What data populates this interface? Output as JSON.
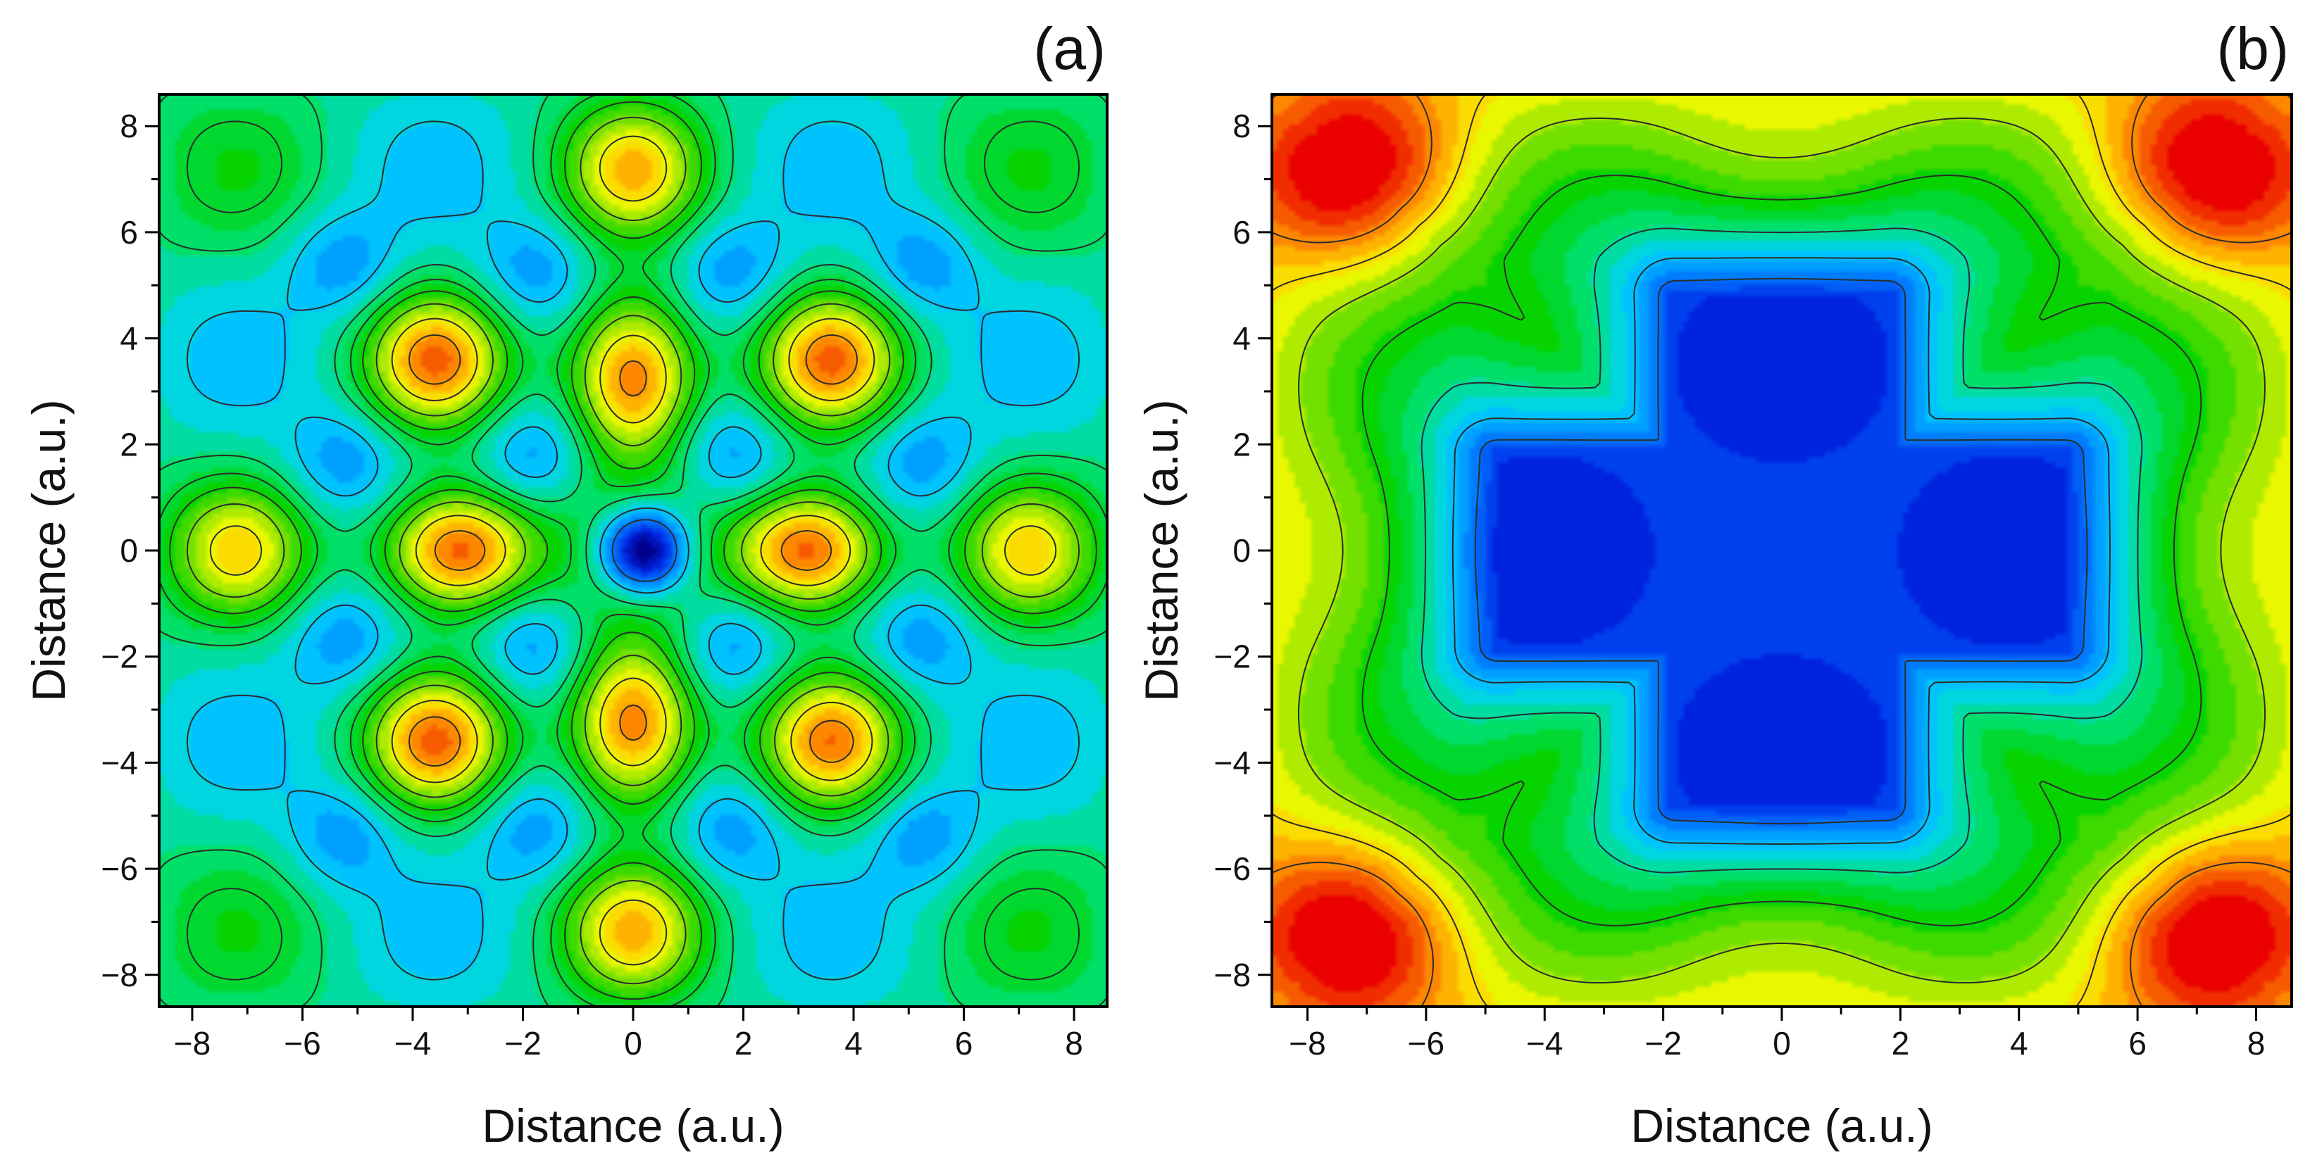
{
  "chart_data": [
    {
      "type": "heatmap",
      "panel_label": "(a)",
      "xlabel": "Distance (a.u.)",
      "ylabel": "Distance (a.u.)",
      "xlim": [
        -8.6,
        8.6
      ],
      "ylim": [
        -8.6,
        8.6
      ],
      "xticks": [
        -8,
        -6,
        -4,
        -2,
        0,
        2,
        4,
        6,
        8
      ],
      "yticks": [
        -8,
        -6,
        -4,
        -2,
        0,
        2,
        4,
        6,
        8
      ],
      "tick_labels": [
        "−8",
        "−6",
        "−4",
        "−2",
        "0",
        "2",
        "4",
        "6",
        "8"
      ],
      "colormap": "jet (blue low, red high)",
      "contour_lines": true,
      "peaks": [
        {
          "x": -3.2,
          "y": 0.0,
          "level": 0.98
        },
        {
          "x": 3.2,
          "y": 0.0,
          "level": 0.98
        },
        {
          "x": 0.0,
          "y": 3.3,
          "level": 0.95
        },
        {
          "x": 0.0,
          "y": -3.3,
          "level": 0.95
        },
        {
          "x": -3.6,
          "y": 3.6,
          "level": 0.78
        },
        {
          "x": 3.6,
          "y": 3.6,
          "level": 0.78
        },
        {
          "x": -3.6,
          "y": -3.6,
          "level": 0.78
        },
        {
          "x": 3.6,
          "y": -3.6,
          "level": 0.76
        },
        {
          "x": 0.0,
          "y": 7.2,
          "level": 0.7
        },
        {
          "x": 0.0,
          "y": -7.2,
          "level": 0.7
        },
        {
          "x": -7.2,
          "y": 0.0,
          "level": 0.66
        },
        {
          "x": 7.2,
          "y": 0.0,
          "level": 0.66
        }
      ],
      "minimum": {
        "x": 0.2,
        "y": 0.0,
        "level": 0.0
      }
    },
    {
      "type": "heatmap",
      "panel_label": "(b)",
      "xlabel": "Distance (a.u.)",
      "ylabel": "Distance (a.u.)",
      "xlim": [
        -8.6,
        8.6
      ],
      "ylim": [
        -8.6,
        8.6
      ],
      "xticks": [
        -8,
        -6,
        -4,
        -2,
        0,
        2,
        4,
        6,
        8
      ],
      "yticks": [
        -8,
        -6,
        -4,
        -2,
        0,
        2,
        4,
        6,
        8
      ],
      "tick_labels": [
        "−8",
        "−6",
        "−4",
        "−2",
        "0",
        "2",
        "4",
        "6",
        "8"
      ],
      "colormap": "jet (blue low, red high)",
      "contour_lines": true,
      "low_region": "cross-shaped minimum centered at (0, 0), arms extending to about ±4.8 a.u.",
      "peaks": [
        {
          "x": -7.3,
          "y": 7.2,
          "level": 1.0
        },
        {
          "x": 7.3,
          "y": 7.2,
          "level": 1.0
        },
        {
          "x": -7.3,
          "y": -7.3,
          "level": 1.0
        },
        {
          "x": 7.3,
          "y": -7.3,
          "level": 1.0
        }
      ]
    }
  ],
  "colors": {
    "contour": "#2b2b2b",
    "frame": "#000000",
    "colormap_low": "#00008f",
    "colormap_mid": "#00d800",
    "colormap_high": "#ff0000"
  }
}
